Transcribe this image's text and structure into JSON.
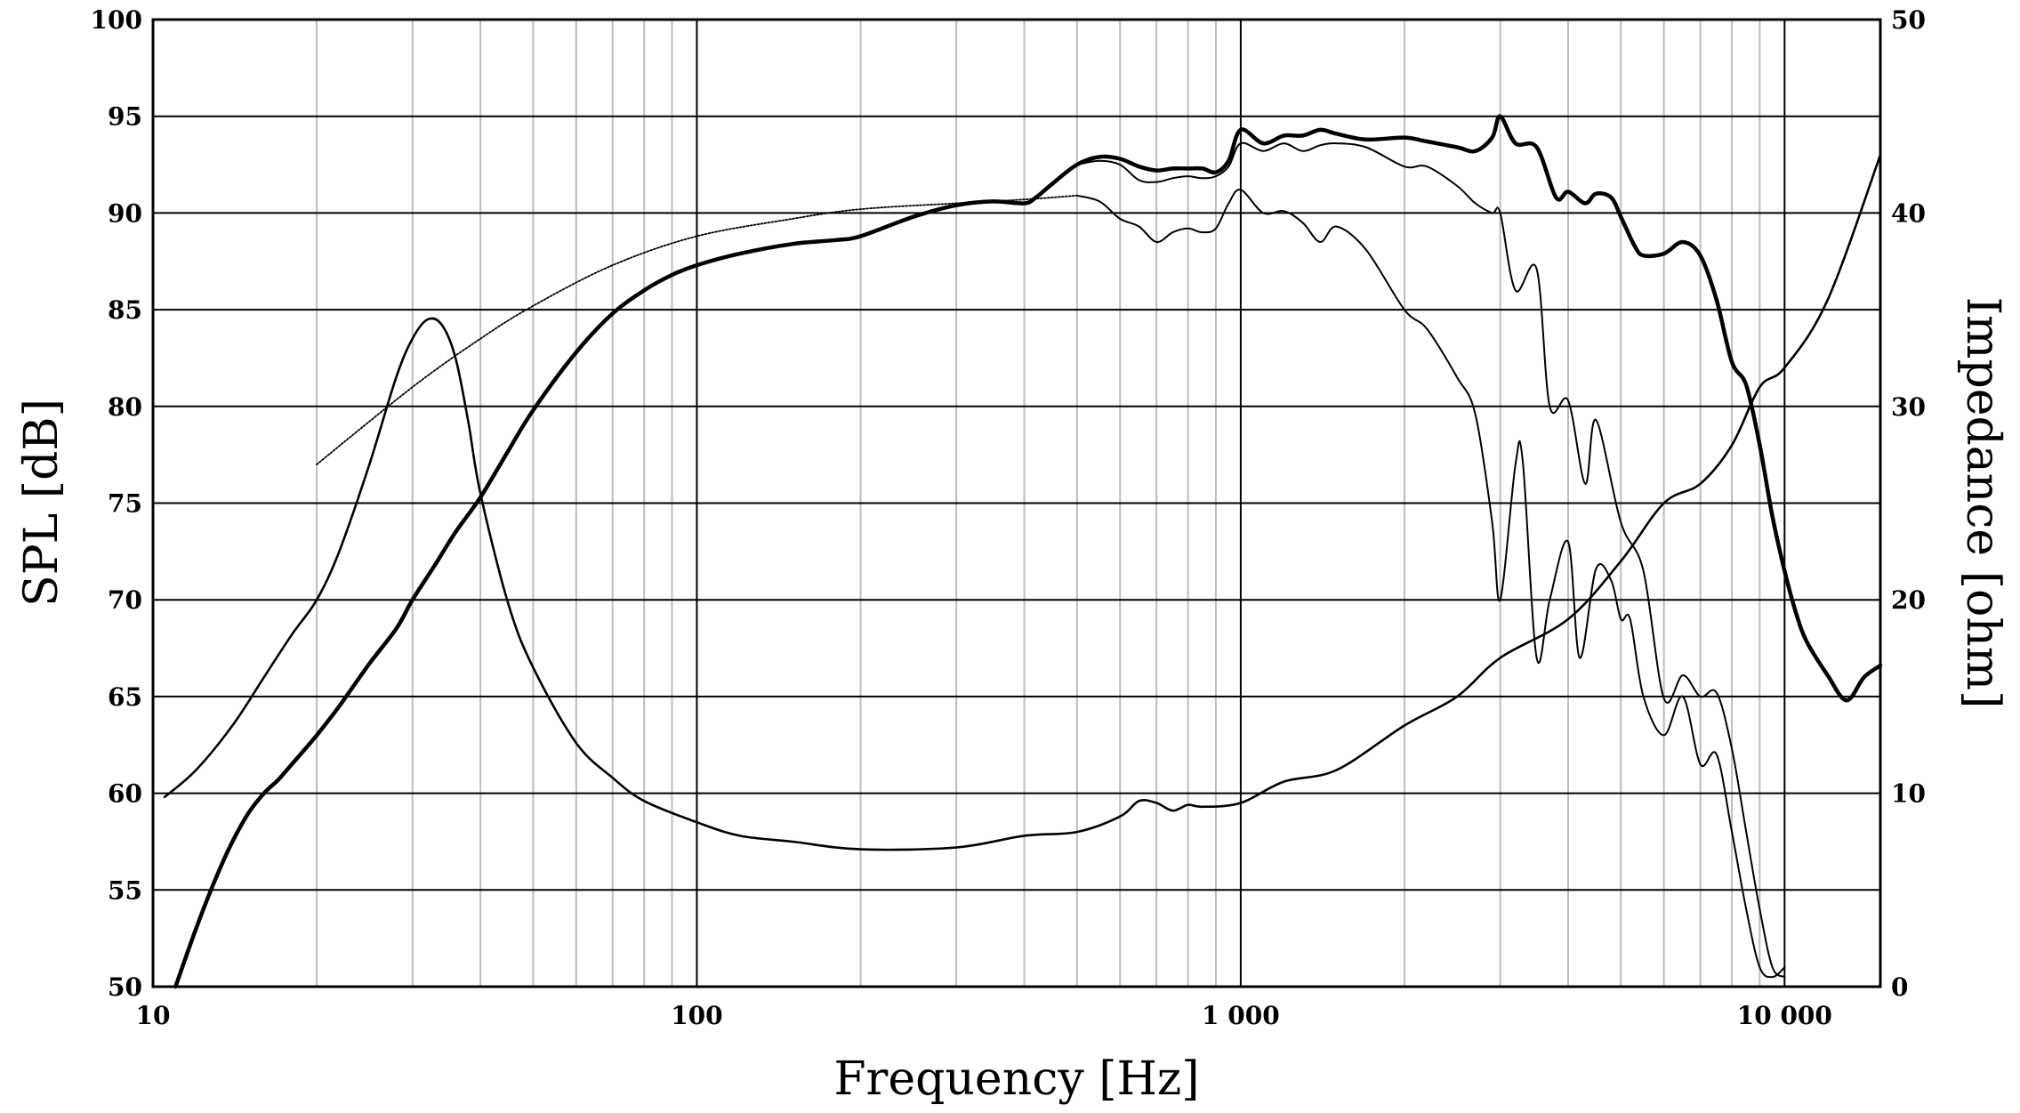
{
  "chart_data": {
    "type": "line",
    "title": "",
    "xlabel": "Frequency [Hz]",
    "ylabel": "SPL [dB]",
    "y2label": "Impedance [ohm]",
    "x_scale": "log",
    "xlim": [
      10,
      15000
    ],
    "ylim": [
      50,
      100
    ],
    "y2lim": [
      0,
      50
    ],
    "grid": true,
    "legend": "none",
    "x_ticks": [
      {
        "value": 10,
        "label": "10"
      },
      {
        "value": 100,
        "label": "100"
      },
      {
        "value": 1000,
        "label": "1 000"
      },
      {
        "value": 10000,
        "label": "10 000"
      }
    ],
    "y_ticks": [
      "50",
      "55",
      "60",
      "65",
      "70",
      "75",
      "80",
      "85",
      "90",
      "95",
      "100"
    ],
    "y2_ticks": [
      "0",
      "10",
      "20",
      "30",
      "40",
      "50"
    ],
    "series": [
      {
        "axis": "left",
        "style": "thick",
        "x": [
          11,
          12,
          13,
          14,
          15,
          16,
          17,
          18,
          20,
          22,
          25,
          28,
          30,
          33,
          36,
          40,
          45,
          50,
          60,
          70,
          80,
          90,
          100,
          120,
          150,
          180,
          200,
          250,
          300,
          350,
          400,
          420,
          450,
          500,
          550,
          600,
          650,
          700,
          750,
          800,
          850,
          900,
          950,
          1000,
          1100,
          1200,
          1300,
          1400,
          1500,
          1700,
          2000,
          2200,
          2500,
          2700,
          2900,
          3000,
          3200,
          3500,
          3800,
          4000,
          4300,
          4500,
          4800,
          5000,
          5300,
          5500,
          6000,
          6500,
          7000,
          7500,
          8000,
          8500,
          9000,
          9500,
          10000,
          10500,
          11000,
          12000,
          13000,
          14000,
          15000
        ],
        "y": [
          50,
          53,
          55.5,
          57.5,
          59,
          60,
          60.7,
          61.5,
          63,
          64.5,
          66.7,
          68.5,
          70,
          71.8,
          73.5,
          75.3,
          77.7,
          79.8,
          82.8,
          84.8,
          86,
          86.8,
          87.3,
          87.9,
          88.4,
          88.6,
          88.8,
          89.8,
          90.4,
          90.6,
          90.5,
          90.8,
          91.5,
          92.5,
          92.9,
          92.8,
          92.4,
          92.2,
          92.3,
          92.3,
          92.3,
          92.1,
          92.7,
          94.3,
          93.6,
          94,
          94,
          94.3,
          94.1,
          93.8,
          93.9,
          93.7,
          93.4,
          93.2,
          93.9,
          95,
          93.6,
          93.4,
          90.8,
          91.1,
          90.5,
          91,
          90.8,
          89.8,
          88.3,
          87.8,
          87.9,
          88.5,
          87.8,
          85.5,
          82.3,
          81.1,
          78,
          74.3,
          71.5,
          69.3,
          67.8,
          66.1,
          64.8,
          66,
          66.6
        ]
      },
      {
        "axis": "left",
        "style": "thin",
        "x": [
          500,
          550,
          600,
          650,
          700,
          750,
          800,
          850,
          900,
          950,
          1000,
          1100,
          1200,
          1300,
          1400,
          1500,
          1700,
          2000,
          2200,
          2500,
          2700,
          2900,
          3000,
          3200,
          3500,
          3700,
          4000,
          4300,
          4500,
          5000,
          5500,
          6000,
          6500,
          7000,
          7500,
          8000,
          8500,
          9000,
          9500,
          10000
        ],
        "y": [
          92.5,
          92.7,
          92.5,
          91.7,
          91.6,
          91.8,
          91.9,
          91.8,
          91.9,
          92.4,
          93.6,
          93.2,
          93.6,
          93.2,
          93.5,
          93.6,
          93.4,
          92.4,
          92.4,
          91.4,
          90.5,
          90,
          90,
          86,
          87.1,
          80,
          80.3,
          76,
          79.3,
          74,
          71.5,
          64.9,
          66.1,
          65,
          65.2,
          62.3,
          58,
          54,
          51,
          50.5
        ]
      },
      {
        "axis": "left",
        "style": "thin",
        "x": [
          500,
          550,
          600,
          650,
          700,
          750,
          800,
          850,
          900,
          950,
          1000,
          1100,
          1200,
          1300,
          1400,
          1500,
          1700,
          2000,
          2200,
          2500,
          2700,
          2900,
          3000,
          3200,
          3300,
          3500,
          3700,
          4000,
          4200,
          4500,
          4800,
          5000,
          5200,
          5500,
          6000,
          6500,
          7000,
          7500,
          8000,
          8500,
          9000,
          9500,
          10000
        ],
        "y": [
          90.9,
          90.6,
          89.7,
          89.3,
          88.5,
          89,
          89.2,
          89,
          89.2,
          90.5,
          91.2,
          90,
          90.1,
          89.5,
          88.5,
          89.3,
          88.1,
          85,
          84,
          81.5,
          79.6,
          74,
          70,
          77,
          77.2,
          67,
          70,
          73,
          67,
          71.6,
          71,
          69,
          69,
          65,
          63,
          65,
          61.5,
          62,
          58,
          54,
          51,
          50.5,
          51
        ]
      },
      {
        "axis": "left",
        "style": "dotted",
        "x": [
          20,
          30,
          40,
          50,
          70,
          100,
          150,
          200,
          300,
          400,
          500
        ],
        "y": [
          77,
          81,
          83.5,
          85.2,
          87.3,
          88.8,
          89.7,
          90.2,
          90.5,
          90.7,
          90.9
        ]
      },
      {
        "axis": "right",
        "style": "medium",
        "x": [
          10.5,
          12,
          14,
          16,
          18,
          20,
          22,
          25,
          28,
          30,
          32,
          34,
          36,
          38,
          40,
          45,
          50,
          60,
          70,
          80,
          100,
          120,
          150,
          200,
          300,
          400,
          500,
          600,
          650,
          700,
          750,
          800,
          850,
          1000,
          1200,
          1500,
          2000,
          2500,
          3000,
          4000,
          5000,
          6000,
          7000,
          8000,
          9000,
          10000,
          12000,
          15000
        ],
        "y": [
          9.8,
          11.2,
          13.5,
          16,
          18.2,
          20,
          22.5,
          27,
          31.5,
          33.5,
          34.5,
          34.2,
          32.5,
          29.2,
          25.5,
          19.8,
          16.5,
          12.6,
          10.8,
          9.6,
          8.5,
          7.8,
          7.5,
          7.1,
          7.2,
          7.8,
          8,
          8.8,
          9.6,
          9.5,
          9.1,
          9.4,
          9.3,
          9.5,
          10.6,
          11.2,
          13.5,
          15,
          17,
          19,
          22,
          25,
          26,
          28,
          31,
          32,
          35.5,
          43
        ]
      }
    ]
  }
}
